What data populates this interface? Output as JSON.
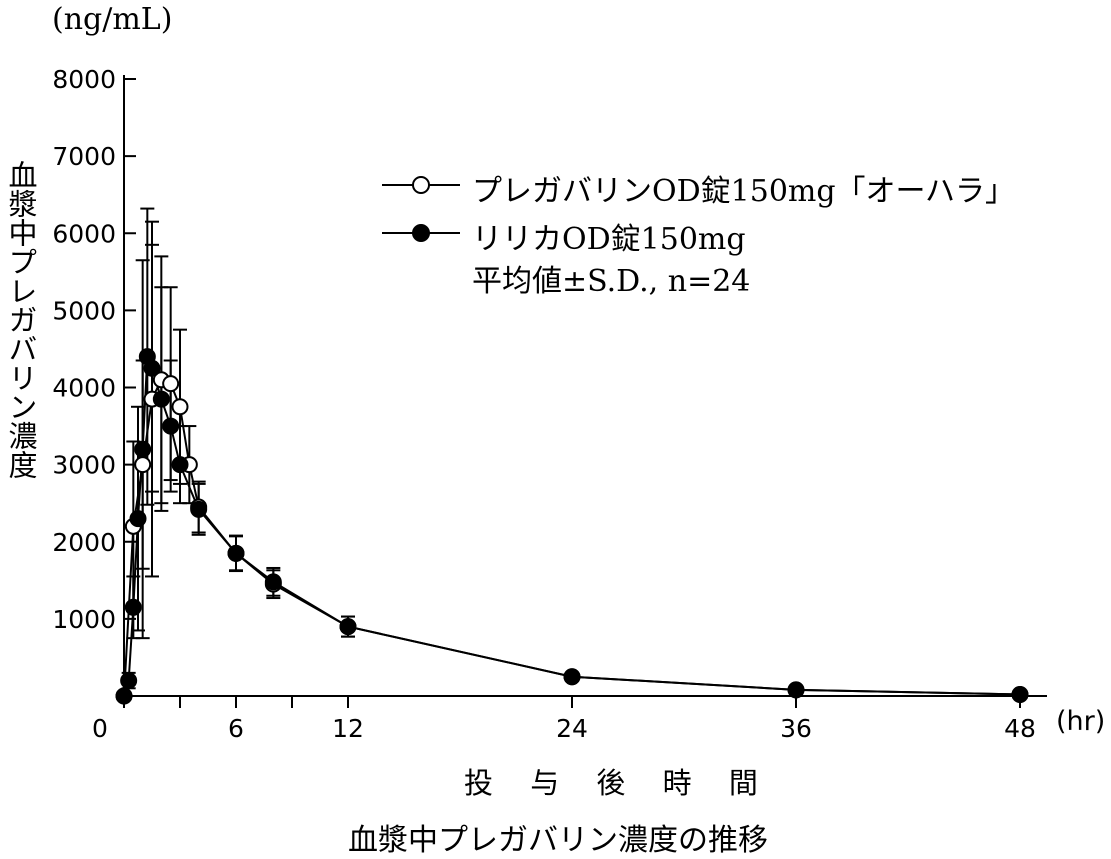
{
  "chart_data": {
    "type": "line",
    "title": "",
    "xlabel": "投 与 後 時 間",
    "ylabel": "血漿中プレガバリン濃度",
    "x_unit": "(hr)",
    "y_unit": "(ng/mL)",
    "caption": "血漿中プレガバリン濃度の推移",
    "xlim": [
      0,
      48
    ],
    "ylim": [
      0,
      8000
    ],
    "x_ticks": [
      0,
      6,
      12,
      24,
      36,
      48
    ],
    "x_tick_labels": [
      "0",
      "6",
      "12",
      "24",
      "36",
      "48"
    ],
    "y_ticks": [
      1000,
      2000,
      3000,
      4000,
      5000,
      6000,
      7000,
      8000
    ],
    "y_tick_labels": [
      "1000",
      "2000",
      "3000",
      "4000",
      "5000",
      "6000",
      "7000",
      "8000"
    ],
    "legend_position": "top-right",
    "note": "平均値±S.D., n=24",
    "series": [
      {
        "name": "プレガバリンOD錠150mg「オーハラ」",
        "marker": "open-circle",
        "color": "#000000",
        "x": [
          0,
          0.5,
          1,
          1.5,
          2,
          2.5,
          3,
          3.5,
          4,
          6,
          8,
          12,
          24,
          36,
          48
        ],
        "y": [
          0,
          2200,
          3000,
          3850,
          4100,
          4050,
          3750,
          3000,
          2450,
          1850,
          1450,
          900,
          250,
          80,
          20
        ],
        "err": [
          0,
          1100,
          1350,
          2300,
          1600,
          1250,
          1000,
          500,
          330,
          220,
          180,
          130,
          50,
          20,
          5
        ]
      },
      {
        "name": "リリカOD錠150mg",
        "marker": "filled-circle",
        "color": "#000000",
        "x": [
          0,
          0.25,
          0.5,
          0.75,
          1,
          1.25,
          1.5,
          2,
          2.5,
          3,
          4,
          6,
          8,
          12,
          24,
          36,
          48
        ],
        "y": [
          0,
          200,
          1150,
          2300,
          3200,
          4400,
          4250,
          3850,
          3500,
          3000,
          2420,
          1850,
          1480,
          900,
          250,
          80,
          20
        ],
        "err": [
          0,
          100,
          400,
          1450,
          2450,
          1920,
          1600,
          1450,
          850,
          500,
          330,
          230,
          180,
          130,
          50,
          20,
          5
        ]
      }
    ]
  }
}
